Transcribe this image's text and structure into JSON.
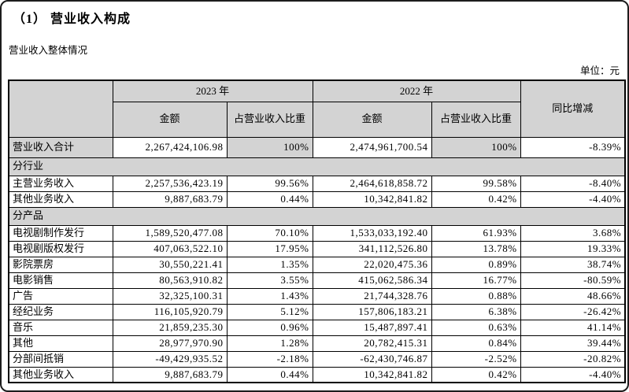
{
  "page": {
    "title": "（1） 营业收入构成",
    "subtitle": "营业收入整体情况",
    "unit_label": "单位：元"
  },
  "colors": {
    "header_bg": "#d3d3d3",
    "border": "#000000",
    "page_bg": "#ffffff"
  },
  "table": {
    "header": {
      "year_2023": "2023 年",
      "year_2022": "2022 年",
      "amount": "金额",
      "share": "占营业收入比重",
      "yoy": "同比增减"
    },
    "rows": [
      {
        "type": "total",
        "label": "营业收入合计",
        "amount_2023": "2,267,424,106.98",
        "share_2023": "100%",
        "amount_2022": "2,474,961,700.54",
        "share_2022": "100%",
        "yoy": "-8.39%"
      },
      {
        "type": "section",
        "label": "分行业"
      },
      {
        "type": "data",
        "label": "主营业务收入",
        "amount_2023": "2,257,536,423.19",
        "share_2023": "99.56%",
        "amount_2022": "2,464,618,858.72",
        "share_2022": "99.58%",
        "yoy": "-8.40%"
      },
      {
        "type": "data",
        "label": "其他业务收入",
        "amount_2023": "9,887,683.79",
        "share_2023": "0.44%",
        "amount_2022": "10,342,841.82",
        "share_2022": "0.42%",
        "yoy": "-4.40%"
      },
      {
        "type": "section",
        "label": "分产品"
      },
      {
        "type": "data",
        "label": "电视剧制作发行",
        "amount_2023": "1,589,520,477.08",
        "share_2023": "70.10%",
        "amount_2022": "1,533,033,192.40",
        "share_2022": "61.93%",
        "yoy": "3.68%"
      },
      {
        "type": "data",
        "label": "电视剧版权发行",
        "amount_2023": "407,063,522.10",
        "share_2023": "17.95%",
        "amount_2022": "341,112,526.80",
        "share_2022": "13.78%",
        "yoy": "19.33%"
      },
      {
        "type": "data",
        "label": "影院票房",
        "amount_2023": "30,550,221.41",
        "share_2023": "1.35%",
        "amount_2022": "22,020,475.36",
        "share_2022": "0.89%",
        "yoy": "38.74%"
      },
      {
        "type": "data",
        "label": "电影销售",
        "amount_2023": "80,563,910.82",
        "share_2023": "3.55%",
        "amount_2022": "415,062,586.34",
        "share_2022": "16.77%",
        "yoy": "-80.59%"
      },
      {
        "type": "data",
        "label": "广告",
        "amount_2023": "32,325,100.31",
        "share_2023": "1.43%",
        "amount_2022": "21,744,328.76",
        "share_2022": "0.88%",
        "yoy": "48.66%"
      },
      {
        "type": "data",
        "label": "经纪业务",
        "amount_2023": "116,105,920.79",
        "share_2023": "5.12%",
        "amount_2022": "157,806,183.21",
        "share_2022": "6.38%",
        "yoy": "-26.42%"
      },
      {
        "type": "data",
        "label": "音乐",
        "amount_2023": "21,859,235.30",
        "share_2023": "0.96%",
        "amount_2022": "15,487,897.41",
        "share_2022": "0.63%",
        "yoy": "41.14%"
      },
      {
        "type": "data",
        "label": "其他",
        "amount_2023": "28,977,970.90",
        "share_2023": "1.28%",
        "amount_2022": "20,782,415.31",
        "share_2022": "0.84%",
        "yoy": "39.44%"
      },
      {
        "type": "data",
        "label": "分部间抵销",
        "amount_2023": "-49,429,935.52",
        "share_2023": "-2.18%",
        "amount_2022": "-62,430,746.87",
        "share_2022": "-2.52%",
        "yoy": "-20.82%"
      },
      {
        "type": "data",
        "label": "其他业务收入",
        "amount_2023": "9,887,683.79",
        "share_2023": "0.44%",
        "amount_2022": "10,342,841.82",
        "share_2022": "0.42%",
        "yoy": "-4.40%"
      }
    ]
  }
}
